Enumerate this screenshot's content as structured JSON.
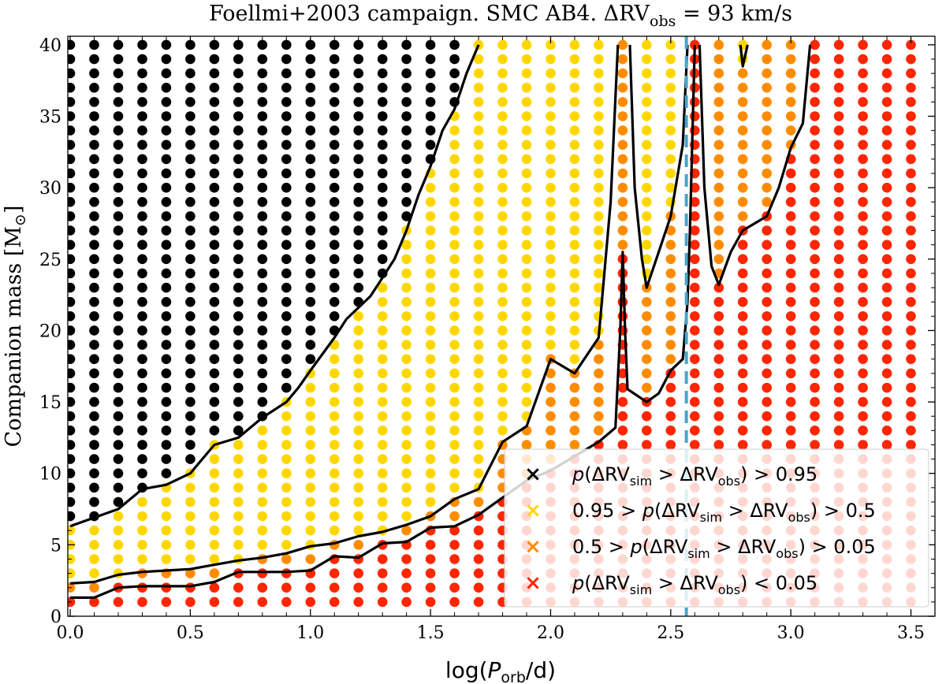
{
  "chart_data": {
    "type": "scatter",
    "title_parts": [
      "Foellmi+2003 campaign. SMC AB4. ",
      "ΔRV",
      "obs",
      " = 93 km/s"
    ],
    "xlabel_parts": [
      "log(",
      "P",
      "orb",
      "/d)"
    ],
    "ylabel_parts": [
      "Companion mass [M",
      "⊙",
      "]"
    ],
    "xlim": [
      -0.01,
      3.6
    ],
    "ylim": [
      0,
      40.6
    ],
    "xticks": [
      0.0,
      0.5,
      1.0,
      1.5,
      2.0,
      2.5,
      3.0,
      3.5
    ],
    "xtick_labels": [
      "0.0",
      "0.5",
      "1.0",
      "1.5",
      "2.0",
      "2.5",
      "3.0",
      "3.5"
    ],
    "yticks": [
      0,
      5,
      10,
      15,
      20,
      25,
      30,
      35,
      40
    ],
    "ytick_labels": [
      "0",
      "5",
      "10",
      "15",
      "20",
      "25",
      "30",
      "35",
      "40"
    ],
    "grid_x": {
      "start": 0.0,
      "step": 0.1,
      "count": 36
    },
    "grid_y": {
      "start": 1,
      "step": 1,
      "count": 40
    },
    "observed_period_line": {
      "x": 2.565,
      "color": "#4aa3c8",
      "style": "dashed"
    },
    "categories": [
      {
        "name": "p > 0.95",
        "color": "#000000"
      },
      {
        "name": "0.95 > p > 0.5",
        "color": "#ffd700"
      },
      {
        "name": "0.5 > p > 0.05",
        "color": "#ff8c00"
      },
      {
        "name": "p < 0.05",
        "color": "#ff2500"
      }
    ],
    "legend": {
      "position": "lower-right",
      "entries": [
        {
          "marker": "×",
          "color": "#000000",
          "parts": [
            "p",
            "(ΔRV",
            "sim",
            " > ΔRV",
            "obs",
            ") > 0.95"
          ]
        },
        {
          "marker": "×",
          "color": "#ffd700",
          "parts": [
            "0.95 > ",
            "p",
            "(ΔRV",
            "sim",
            " > ΔRV",
            "obs",
            ") > 0.5"
          ]
        },
        {
          "marker": "×",
          "color": "#ff8c00",
          "parts": [
            "0.5 > ",
            "p",
            "(ΔRV",
            "sim",
            " > ΔRV",
            "obs",
            ") > 0.05"
          ]
        },
        {
          "marker": "×",
          "color": "#ff2500",
          "parts": [
            "p",
            "(ΔRV",
            "sim",
            " > ΔRV",
            "obs",
            ") < 0.05"
          ]
        }
      ]
    },
    "contours": [
      {
        "name": "p=0.95",
        "points": [
          [
            0,
            6.3
          ],
          [
            0.1,
            6.9
          ],
          [
            0.2,
            7.5
          ],
          [
            0.3,
            8.9
          ],
          [
            0.4,
            9.2
          ],
          [
            0.5,
            10.0
          ],
          [
            0.55,
            11.0
          ],
          [
            0.6,
            12.0
          ],
          [
            0.7,
            12.5
          ],
          [
            0.8,
            13.9
          ],
          [
            0.9,
            15.0
          ],
          [
            0.95,
            16.0
          ],
          [
            1.0,
            17.2
          ],
          [
            1.1,
            19.5
          ],
          [
            1.15,
            20.8
          ],
          [
            1.2,
            21.6
          ],
          [
            1.25,
            22.4
          ],
          [
            1.3,
            23.7
          ],
          [
            1.35,
            25.0
          ],
          [
            1.4,
            27.0
          ],
          [
            1.45,
            29.5
          ],
          [
            1.5,
            31.5
          ],
          [
            1.55,
            34.0
          ],
          [
            1.6,
            35.5
          ],
          [
            1.65,
            38.0
          ],
          [
            1.7,
            40.0
          ]
        ]
      },
      {
        "name": "p=0.5",
        "points": [
          [
            0,
            2.3
          ],
          [
            0.1,
            2.4
          ],
          [
            0.2,
            2.9
          ],
          [
            0.3,
            3.1
          ],
          [
            0.4,
            3.2
          ],
          [
            0.5,
            3.3
          ],
          [
            0.6,
            3.6
          ],
          [
            0.7,
            3.9
          ],
          [
            0.8,
            4.1
          ],
          [
            0.9,
            4.4
          ],
          [
            1.0,
            4.9
          ],
          [
            1.1,
            5.1
          ],
          [
            1.2,
            5.6
          ],
          [
            1.3,
            5.9
          ],
          [
            1.4,
            6.4
          ],
          [
            1.5,
            7.0
          ],
          [
            1.6,
            8.2
          ],
          [
            1.7,
            8.9
          ],
          [
            1.8,
            12.2
          ],
          [
            1.9,
            13.3
          ],
          [
            2.0,
            18.0
          ],
          [
            2.1,
            17.0
          ],
          [
            2.2,
            19.5
          ],
          [
            2.25,
            29.0
          ],
          [
            2.28,
            40.0
          ]
        ]
      },
      {
        "name": "p=0.05 left",
        "points": [
          [
            0,
            1.3
          ],
          [
            0.1,
            1.3
          ],
          [
            0.2,
            2.0
          ],
          [
            0.3,
            2.1
          ],
          [
            0.4,
            2.1
          ],
          [
            0.5,
            2.1
          ],
          [
            0.6,
            2.4
          ],
          [
            0.7,
            3.1
          ],
          [
            0.8,
            3.1
          ],
          [
            0.9,
            3.1
          ],
          [
            1.0,
            3.2
          ],
          [
            1.1,
            4.2
          ],
          [
            1.2,
            4.1
          ],
          [
            1.3,
            5.1
          ],
          [
            1.4,
            5.2
          ],
          [
            1.5,
            6.2
          ],
          [
            1.6,
            6.3
          ],
          [
            1.7,
            7.1
          ],
          [
            1.8,
            8.3
          ],
          [
            1.9,
            9.5
          ],
          [
            2.0,
            10.2
          ],
          [
            2.1,
            11.2
          ],
          [
            2.2,
            12.2
          ],
          [
            2.27,
            13.2
          ],
          [
            2.29,
            20.0
          ],
          [
            2.3,
            25.5
          ],
          [
            2.31,
            20.0
          ],
          [
            2.32,
            15.9
          ],
          [
            2.4,
            15.0
          ],
          [
            2.45,
            15.6
          ],
          [
            2.5,
            17.2
          ],
          [
            2.55,
            18.0
          ],
          [
            2.57,
            22.0
          ],
          [
            2.58,
            27.0
          ],
          [
            2.6,
            40.0
          ]
        ]
      },
      {
        "name": "p=0.5 peak",
        "points": [
          [
            2.33,
            40.0
          ],
          [
            2.35,
            30.0
          ],
          [
            2.38,
            25.0
          ],
          [
            2.4,
            23.0
          ],
          [
            2.45,
            25.5
          ],
          [
            2.5,
            28.0
          ],
          [
            2.55,
            33.0
          ],
          [
            2.57,
            40.0
          ]
        ]
      },
      {
        "name": "p=0.05 right",
        "points": [
          [
            2.62,
            40.0
          ],
          [
            2.64,
            30.0
          ],
          [
            2.67,
            24.5
          ],
          [
            2.7,
            23.2
          ],
          [
            2.75,
            25.5
          ],
          [
            2.8,
            27.0
          ],
          [
            2.9,
            28.0
          ],
          [
            2.95,
            30.0
          ],
          [
            3.0,
            32.8
          ],
          [
            3.05,
            34.5
          ],
          [
            3.08,
            40.0
          ]
        ]
      },
      {
        "name": "p=0.5 spike",
        "points": [
          [
            2.79,
            40.0
          ],
          [
            2.8,
            38.5
          ],
          [
            2.82,
            40.0
          ]
        ]
      }
    ]
  }
}
